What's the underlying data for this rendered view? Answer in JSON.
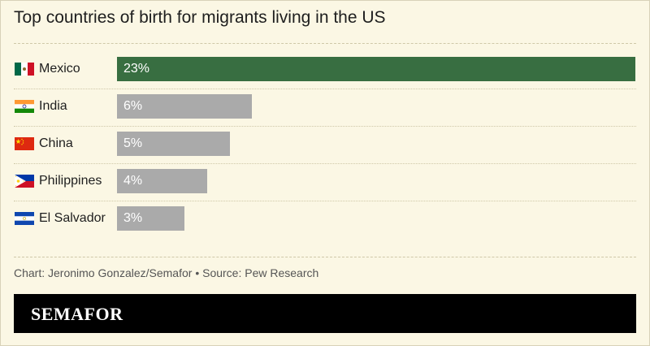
{
  "title": "Top countries of birth for migrants living in the US",
  "footer": "Chart: Jeronimo Gonzalez/Semafor • Source: Pew Research",
  "brand": "SEMAFOR",
  "colors": {
    "highlight": "#386e41",
    "bar": "#aaaaaa",
    "background": "#fbf7e4"
  },
  "chart_data": {
    "type": "bar",
    "orientation": "horizontal",
    "categories": [
      "Mexico",
      "India",
      "China",
      "Philippines",
      "El Salvador"
    ],
    "values": [
      23,
      6,
      5,
      4,
      3
    ],
    "labels": [
      "23%",
      "6%",
      "5%",
      "4%",
      "3%"
    ],
    "flags": [
      "mexico-flag-icon",
      "india-flag-icon",
      "china-flag-icon",
      "philippines-flag-icon",
      "el-salvador-flag-icon"
    ],
    "highlight_index": 0,
    "unit": "%"
  }
}
